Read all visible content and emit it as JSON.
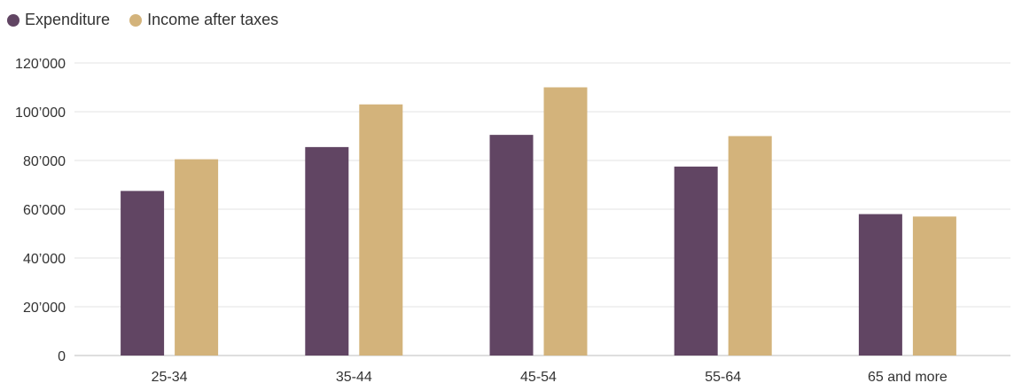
{
  "chart_data": {
    "type": "bar",
    "title": "",
    "xlabel": "",
    "ylabel": "",
    "categories": [
      "25-34",
      "35-44",
      "45-54",
      "55-64",
      "65 and more"
    ],
    "series": [
      {
        "name": "Expenditure",
        "color": "#614563",
        "values": [
          67500,
          85500,
          90500,
          77500,
          58000
        ]
      },
      {
        "name": "Income after taxes",
        "color": "#d3b37b",
        "values": [
          80500,
          103000,
          110000,
          90000,
          57000
        ]
      }
    ],
    "ylim": [
      0,
      120000
    ],
    "yticks": [
      0,
      20000,
      40000,
      60000,
      80000,
      100000,
      120000
    ],
    "ytick_labels": [
      "0",
      "20’000",
      "40’000",
      "60’000",
      "80’000",
      "100’000",
      "120’000"
    ],
    "grid": true,
    "legend_position": "top-left"
  }
}
